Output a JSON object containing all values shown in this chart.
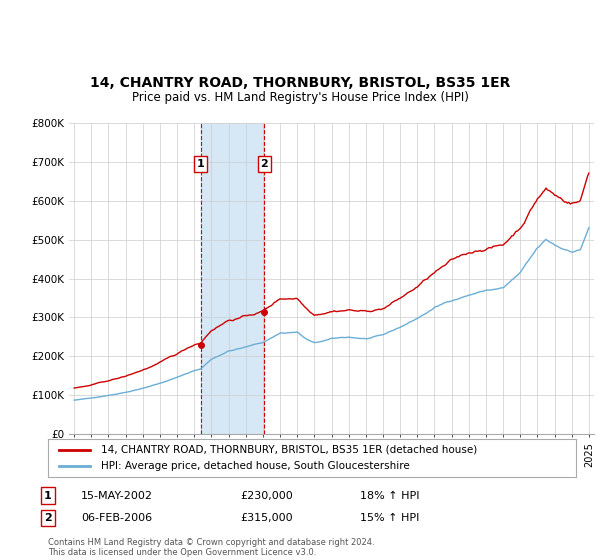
{
  "title": "14, CHANTRY ROAD, THORNBURY, BRISTOL, BS35 1ER",
  "subtitle": "Price paid vs. HM Land Registry's House Price Index (HPI)",
  "legend_line1": "14, CHANTRY ROAD, THORNBURY, BRISTOL, BS35 1ER (detached house)",
  "legend_line2": "HPI: Average price, detached house, South Gloucestershire",
  "transaction1_date": "15-MAY-2002",
  "transaction1_price": "£230,000",
  "transaction1_hpi": "18% ↑ HPI",
  "transaction1_year": 2002.37,
  "transaction1_value": 230000,
  "transaction2_date": "06-FEB-2006",
  "transaction2_price": "£315,000",
  "transaction2_hpi": "15% ↑ HPI",
  "transaction2_year": 2006.09,
  "transaction2_value": 315000,
  "shade_color": "#d6e8f5",
  "dashed_color": "#cc0000",
  "red_line_color": "#cc0000",
  "blue_line_color": "#6baed6",
  "footer": "Contains HM Land Registry data © Crown copyright and database right 2024.\nThis data is licensed under the Open Government Licence v3.0.",
  "ylim": [
    0,
    800000
  ],
  "xlim": [
    1994.7,
    2025.3
  ],
  "yticks": [
    0,
    100000,
    200000,
    300000,
    400000,
    500000,
    600000,
    700000,
    800000
  ],
  "ytick_labels": [
    "£0",
    "£100K",
    "£200K",
    "£300K",
    "£400K",
    "£500K",
    "£600K",
    "£700K",
    "£800K"
  ],
  "xticks": [
    1995,
    1996,
    1997,
    1998,
    1999,
    2000,
    2001,
    2002,
    2003,
    2004,
    2005,
    2006,
    2007,
    2008,
    2009,
    2010,
    2011,
    2012,
    2013,
    2014,
    2015,
    2016,
    2017,
    2018,
    2019,
    2020,
    2021,
    2022,
    2023,
    2024,
    2025
  ]
}
